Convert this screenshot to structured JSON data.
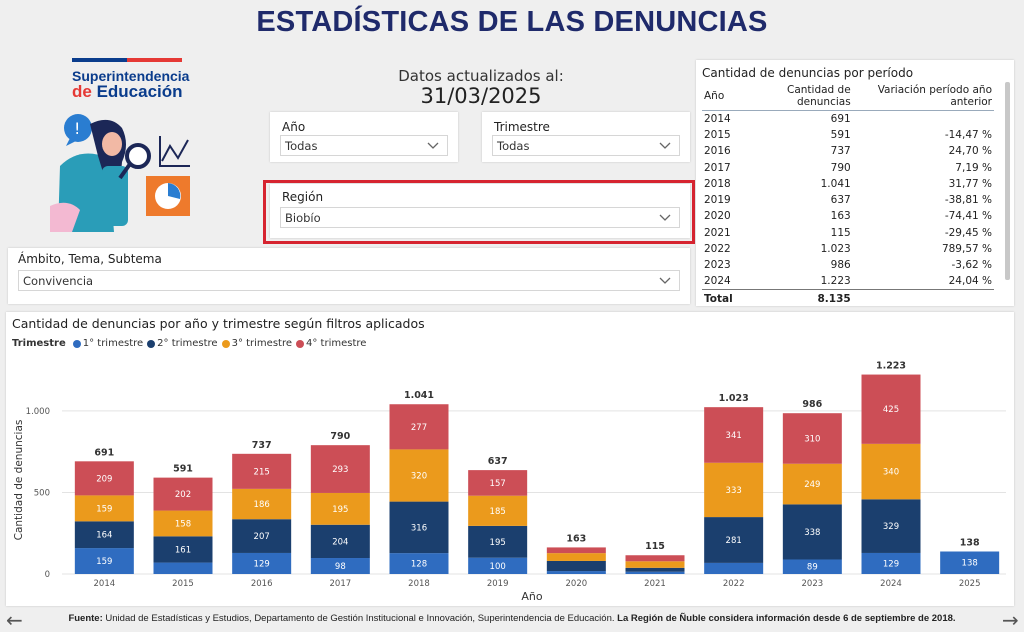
{
  "title": "ESTADÍSTICAS DE LAS DENUNCIAS",
  "logo": {
    "line1": "Superintendencia",
    "line2_a": "de ",
    "line2_b": "Educación"
  },
  "updated": {
    "label": "Datos actualizados al:",
    "date": "31/03/2025"
  },
  "slicers": {
    "anio": {
      "title": "Año",
      "value": "Todas"
    },
    "trimestre": {
      "title": "Trimestre",
      "value": "Todas"
    },
    "region": {
      "title": "Región",
      "value": "Biobío"
    },
    "ambito": {
      "title": "Ámbito, Tema, Subtema",
      "value": "Convivencia"
    }
  },
  "table": {
    "title": "Cantidad de denuncias por período",
    "headers": [
      "Año",
      "Cantidad de denuncias",
      "Variación período año anterior"
    ],
    "rows": [
      [
        "2014",
        "691",
        ""
      ],
      [
        "2015",
        "591",
        "-14,47 %"
      ],
      [
        "2016",
        "737",
        "24,70 %"
      ],
      [
        "2017",
        "790",
        "7,19 %"
      ],
      [
        "2018",
        "1.041",
        "31,77 %"
      ],
      [
        "2019",
        "637",
        "-38,81 %"
      ],
      [
        "2020",
        "163",
        "-74,41 %"
      ],
      [
        "2021",
        "115",
        "-29,45 %"
      ],
      [
        "2022",
        "1.023",
        "789,57 %"
      ],
      [
        "2023",
        "986",
        "-3,62 %"
      ],
      [
        "2024",
        "1.223",
        "24,04 %"
      ]
    ],
    "total_label": "Total",
    "total_value": "8.135"
  },
  "chart_data": {
    "type": "bar",
    "title": "Cantidad de denuncias por año y trimestre según filtros aplicados",
    "legend_title": "Trimestre",
    "xlabel": "Año",
    "ylabel": "Cantidad de denuncias",
    "ylim": [
      0,
      1300
    ],
    "yticks": [
      0,
      500,
      1000
    ],
    "ytick_labels": [
      "0",
      "500",
      "1.000"
    ],
    "categories": [
      "2014",
      "2015",
      "2016",
      "2017",
      "2018",
      "2019",
      "2020",
      "2021",
      "2022",
      "2023",
      "2024",
      "2025"
    ],
    "series": [
      {
        "name": "1° trimestre",
        "color": "#2f6cc0",
        "values": [
          159,
          70,
          129,
          98,
          128,
          100,
          18,
          14,
          68,
          89,
          129,
          138
        ]
      },
      {
        "name": "2° trimestre",
        "color": "#1b3f6e",
        "values": [
          164,
          161,
          207,
          204,
          316,
          195,
          62,
          24,
          281,
          338,
          329,
          0
        ]
      },
      {
        "name": "3° trimestre",
        "color": "#eb9a1c",
        "values": [
          159,
          158,
          186,
          195,
          320,
          185,
          48,
          40,
          333,
          249,
          340,
          0
        ]
      },
      {
        "name": "4° trimestre",
        "color": "#cc4e56",
        "values": [
          209,
          202,
          215,
          293,
          277,
          157,
          35,
          37,
          341,
          310,
          425,
          0
        ]
      }
    ],
    "segment_labels": [
      [
        "159",
        "",
        "129",
        "98",
        "128",
        "100",
        "",
        "",
        "",
        "89",
        "129",
        "138"
      ],
      [
        "164",
        "161",
        "207",
        "204",
        "316",
        "195",
        "",
        "",
        "281",
        "338",
        "329",
        ""
      ],
      [
        "159",
        "158",
        "186",
        "195",
        "320",
        "185",
        "",
        "",
        "333",
        "249",
        "340",
        ""
      ],
      [
        "209",
        "202",
        "215",
        "293",
        "277",
        "157",
        "",
        "",
        "341",
        "310",
        "425",
        ""
      ]
    ],
    "totals": [
      691,
      591,
      737,
      790,
      1041,
      637,
      163,
      115,
      1023,
      986,
      1223,
      138
    ],
    "total_labels": [
      "691",
      "591",
      "737",
      "790",
      "1.041",
      "637",
      "163",
      "115",
      "1.023",
      "986",
      "1.223",
      "138"
    ]
  },
  "footer": {
    "source_label": "Fuente:",
    "source_text": " Unidad de Estadísticas y Estudios, Departamento de Gestión Institucional e Innovación, Superintendencia de Educación. ",
    "note": "La Región de Ñuble considera información desde 6  de septiembre de 2018."
  },
  "nav": {
    "prev": "←",
    "next": "→"
  }
}
